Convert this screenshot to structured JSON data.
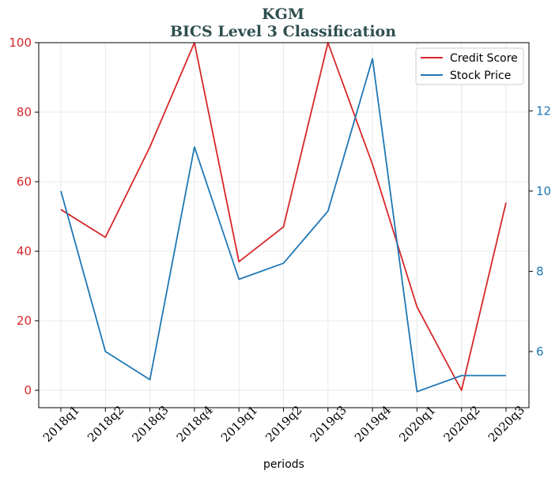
{
  "chart_data": {
    "type": "line",
    "title": "KGM",
    "subtitle": "BICS Level 3 Classification",
    "xlabel": "periods",
    "categories": [
      "2018q1",
      "2018q2",
      "2018q3",
      "2018q4",
      "2019q1",
      "2019q2",
      "2019q3",
      "2019q4",
      "2020q1",
      "2020q2",
      "2020q3"
    ],
    "series": [
      {
        "name": "Credit Score",
        "axis": "left",
        "color": "#d62728",
        "values": [
          52,
          44,
          70,
          100,
          37,
          47,
          100,
          65,
          24,
          0,
          54
        ]
      },
      {
        "name": "Stock Price",
        "axis": "right",
        "color": "#1f77b4",
        "values": [
          10.0,
          6.0,
          5.3,
          11.1,
          7.8,
          8.2,
          9.5,
          13.3,
          5.0,
          5.4,
          5.4
        ]
      }
    ],
    "ylim_left": [
      -5,
      100
    ],
    "yticks_left": [
      "0",
      "20",
      "40",
      "60",
      "80",
      "100"
    ],
    "ylim_right": [
      4.6,
      13.7
    ],
    "yticks_right": [
      "6",
      "8",
      "10",
      "12"
    ],
    "grid": true,
    "legend_placement": "top-right"
  }
}
